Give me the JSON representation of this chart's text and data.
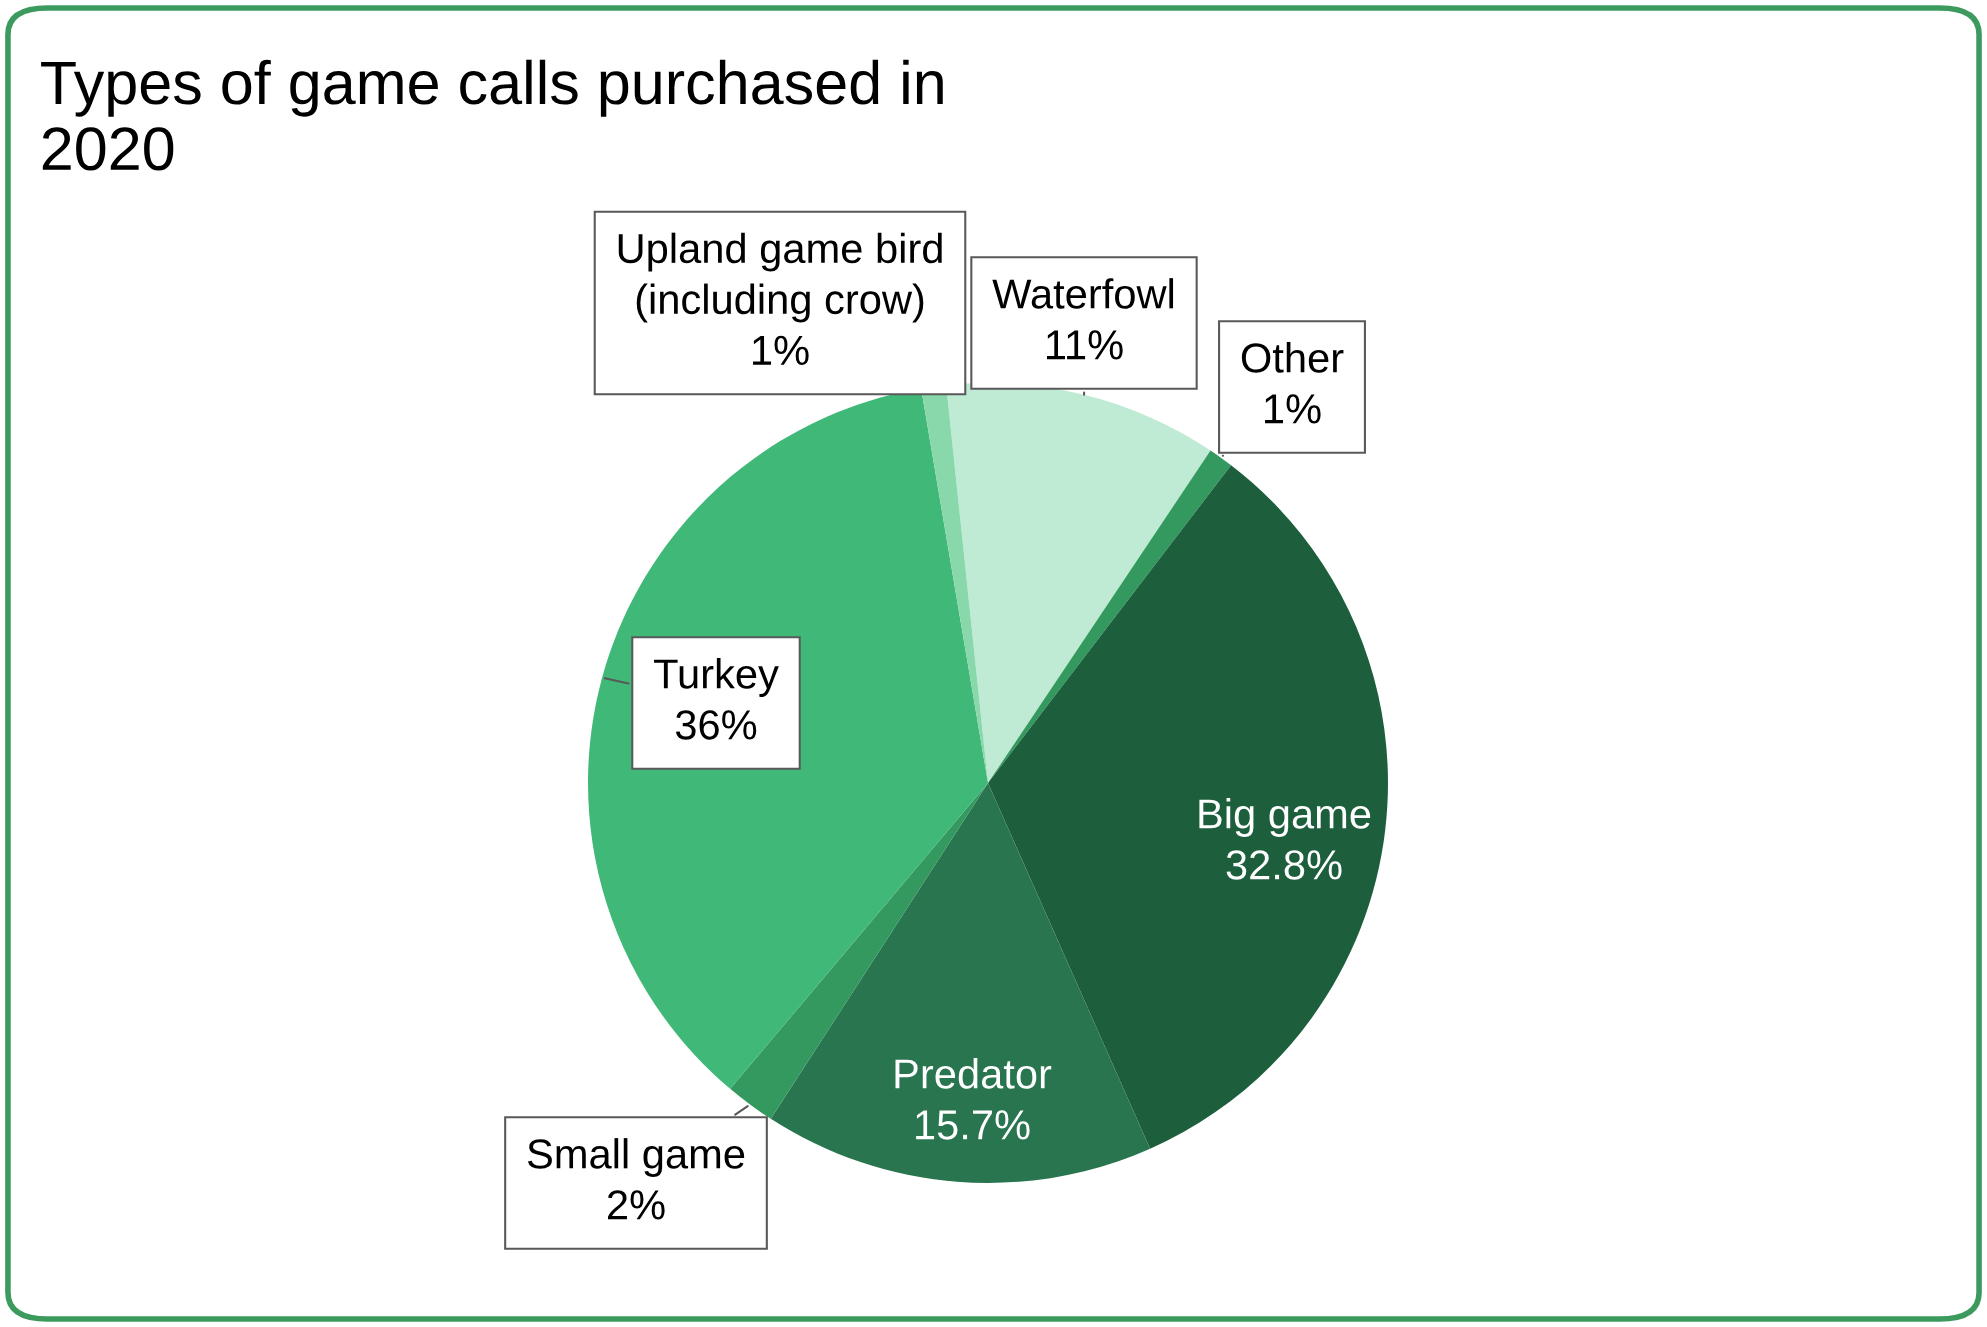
{
  "chart_data": {
    "type": "pie",
    "title": "Types of game calls purchased in\n2020",
    "categories": [
      "Waterfowl",
      "Other",
      "Big game",
      "Predator",
      "Small game",
      "Turkey",
      "Upland game bird\n(including crow)"
    ],
    "values": [
      11,
      1,
      32.8,
      15.7,
      2,
      36,
      1
    ],
    "colors": [
      "#bfead3",
      "#34995f",
      "#1d5e3d",
      "#28754f",
      "#34995f",
      "#40b878",
      "#88d8ab"
    ],
    "value_labels": [
      "11%",
      "1%",
      "32.8%",
      "15.7%",
      "2%",
      "36%",
      "1%"
    ],
    "legend": false
  }
}
